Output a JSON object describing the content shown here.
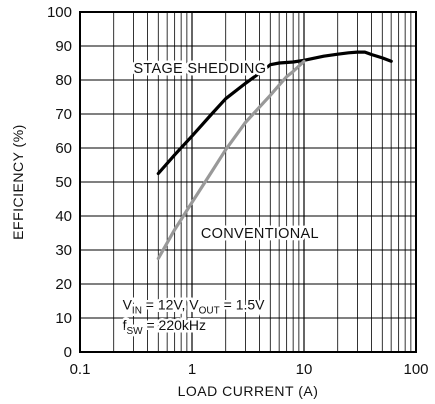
{
  "chart_data": {
    "type": "line",
    "title": "",
    "xlabel": "LOAD CURRENT (A)",
    "ylabel": "EFFICIENCY (%)",
    "x_scale": "log",
    "xlim": [
      0.1,
      100
    ],
    "ylim": [
      0,
      100
    ],
    "x_ticks": [
      0.1,
      1,
      10,
      100
    ],
    "x_tick_labels": [
      "0.1",
      "1",
      "10",
      "100"
    ],
    "y_ticks": [
      0,
      10,
      20,
      30,
      40,
      50,
      60,
      70,
      80,
      90,
      100
    ],
    "y_tick_labels": [
      "0",
      "10",
      "20",
      "30",
      "40",
      "50",
      "60",
      "70",
      "80",
      "90",
      "100"
    ],
    "grid": true,
    "legend": "none",
    "series": [
      {
        "name": "STAGE SHEDDING",
        "color": "#000000",
        "x": [
          0.5,
          0.7,
          1,
          1.5,
          2,
          3,
          4,
          5,
          6,
          8,
          10,
          15,
          20,
          25,
          30,
          35,
          40,
          50,
          60
        ],
        "y": [
          52.5,
          58,
          63.5,
          70,
          74.5,
          79,
          82,
          84.5,
          85,
          85.3,
          85.8,
          87,
          87.6,
          88,
          88.2,
          88.2,
          87.5,
          86.5,
          85.5
        ]
      },
      {
        "name": "CONVENTIONAL",
        "color": "#999999",
        "x": [
          0.5,
          0.7,
          1,
          1.5,
          2,
          3,
          4,
          5,
          6,
          7,
          8,
          10
        ],
        "y": [
          27.5,
          36,
          44,
          53,
          59.5,
          67.5,
          72,
          75.5,
          78.5,
          81,
          82.5,
          85.5
        ]
      }
    ],
    "annotations": {
      "line1": {
        "parts": [
          "V",
          "IN",
          " = 12V, V",
          "OUT",
          " = 1.5V"
        ]
      },
      "line2": {
        "parts": [
          "f",
          "SW",
          " = 220kHz"
        ]
      }
    }
  }
}
